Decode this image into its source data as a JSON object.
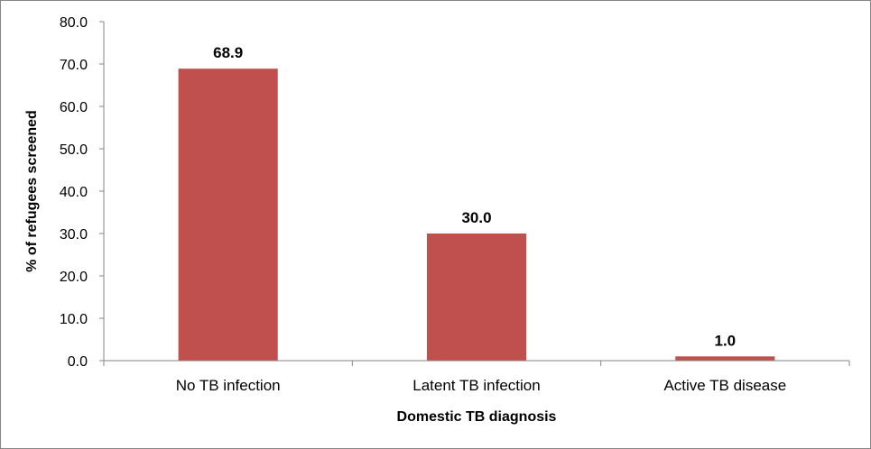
{
  "chart_data": {
    "type": "bar",
    "categories": [
      "No TB infection",
      "Latent TB infection",
      "Active TB disease"
    ],
    "values": [
      68.9,
      30.0,
      1.0
    ],
    "data_labels": [
      "68.9",
      "30.0",
      "1.0"
    ],
    "xlabel": "Domestic TB diagnosis",
    "ylabel": "% of refugees screened",
    "ylim": [
      0,
      80
    ],
    "yticks": [
      "0.0",
      "10.0",
      "20.0",
      "30.0",
      "40.0",
      "50.0",
      "60.0",
      "70.0",
      "80.0"
    ],
    "grid": false,
    "legend": "none",
    "bar_color": "#C0504D"
  }
}
